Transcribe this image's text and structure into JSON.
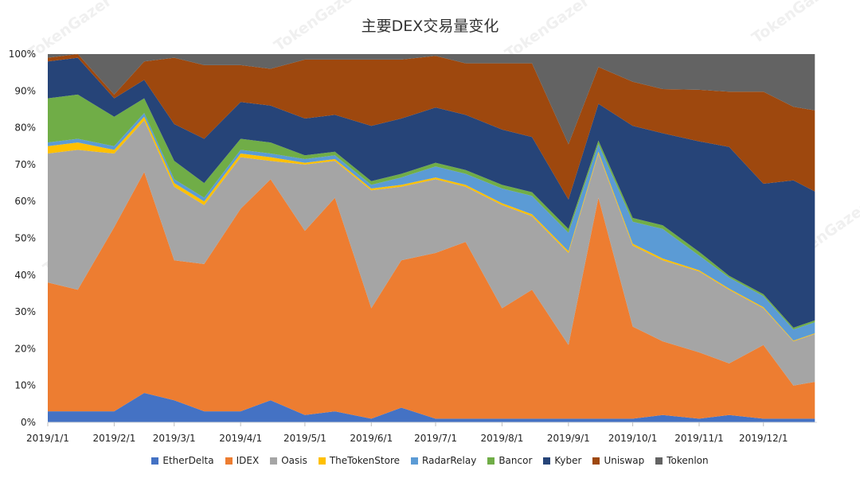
{
  "chart_data": {
    "type": "area",
    "stacked": true,
    "normalized": true,
    "title": "主要DEX交易量变化",
    "watermark": "TokenGazer",
    "x_tick_labels": [
      "2019/1/1",
      "2019/2/1",
      "2019/3/1",
      "2019/4/1",
      "2019/5/1",
      "2019/6/1",
      "2019/7/1",
      "2019/8/1",
      "2019/9/1",
      "2019/10/1",
      "2019/11/1",
      "2019/12/1"
    ],
    "y_tick_labels": [
      "0%",
      "10%",
      "20%",
      "30%",
      "40%",
      "50%",
      "60%",
      "70%",
      "80%",
      "90%",
      "100%"
    ],
    "ylim": [
      0,
      100
    ],
    "x_start": "2019-01-01",
    "legend_position": "bottom",
    "x": [
      "2019-01-01",
      "2019-01-15",
      "2019-02-01",
      "2019-02-15",
      "2019-03-01",
      "2019-03-15",
      "2019-04-01",
      "2019-04-15",
      "2019-05-01",
      "2019-05-15",
      "2019-06-01",
      "2019-06-15",
      "2019-07-01",
      "2019-07-15",
      "2019-08-01",
      "2019-08-15",
      "2019-09-01",
      "2019-09-15",
      "2019-10-01",
      "2019-10-15",
      "2019-11-01",
      "2019-11-15",
      "2019-12-01",
      "2019-12-15",
      "2019-12-25"
    ],
    "series": [
      {
        "name": "EtherDelta",
        "color": "#4472c4",
        "values": [
          3,
          3,
          3,
          8,
          6,
          3,
          3,
          6,
          2,
          3,
          1,
          4,
          1,
          1,
          1,
          1,
          1,
          1,
          1,
          2,
          1,
          2,
          1,
          1,
          1
        ]
      },
      {
        "name": "IDEX",
        "color": "#ed7d31",
        "values": [
          35,
          33,
          50,
          60,
          38,
          40,
          55,
          60,
          50,
          58,
          30,
          40,
          45,
          48,
          30,
          35,
          20,
          60,
          25,
          20,
          18,
          14,
          20,
          9,
          10
        ]
      },
      {
        "name": "Oasis",
        "color": "#a5a5a5",
        "values": [
          35,
          38,
          20,
          14,
          20,
          16,
          14,
          5,
          18,
          10,
          32,
          20,
          20,
          15,
          28,
          20,
          25,
          12,
          22,
          22,
          22,
          20,
          10,
          12,
          13
        ]
      },
      {
        "name": "TheTokenStore",
        "color": "#ffc000",
        "values": [
          2,
          2,
          1,
          1,
          1,
          1,
          1,
          1,
          0.5,
          0.5,
          0.5,
          0.5,
          0.5,
          0.5,
          0.5,
          0.5,
          0.5,
          0.5,
          0.5,
          0.5,
          0.3,
          0.3,
          0.3,
          0.2,
          0.2
        ]
      },
      {
        "name": "RadarRelay",
        "color": "#5b9bd5",
        "values": [
          1,
          1,
          1,
          1,
          1,
          1,
          1,
          1,
          1,
          1,
          1,
          2,
          3,
          3,
          4,
          5,
          5,
          2,
          6,
          8,
          4,
          3,
          3,
          3,
          3
        ]
      },
      {
        "name": "Bancor",
        "color": "#70ad47",
        "values": [
          12,
          12,
          8,
          4,
          5,
          4,
          3,
          3,
          1,
          1,
          1,
          1,
          1,
          1,
          1,
          1,
          1,
          1,
          1,
          1,
          1,
          0.5,
          0.5,
          0.5,
          0.5
        ]
      },
      {
        "name": "Kyber",
        "color": "#264478",
        "values": [
          10,
          10,
          5,
          5,
          10,
          12,
          10,
          10,
          10,
          10,
          15,
          15,
          15,
          15,
          15,
          15,
          8,
          10,
          25,
          25,
          30,
          35,
          30,
          40,
          35
        ]
      },
      {
        "name": "Uniswap",
        "color": "#9e480e",
        "values": [
          1,
          1,
          1,
          5,
          18,
          20,
          10,
          10,
          16,
          15,
          18,
          16,
          14,
          14,
          18,
          20,
          15,
          10,
          12,
          12,
          14,
          15,
          25,
          20,
          22
        ]
      },
      {
        "name": "Tokenlon",
        "color": "#636363",
        "values": [
          1,
          0,
          11,
          2,
          1,
          3,
          3,
          4,
          1.5,
          1.5,
          1.5,
          1.5,
          0.5,
          2.5,
          2.5,
          2.5,
          24.5,
          3.5,
          7.5,
          9.5,
          9.7,
          10.2,
          10.2,
          14.3,
          15.3
        ]
      }
    ]
  }
}
